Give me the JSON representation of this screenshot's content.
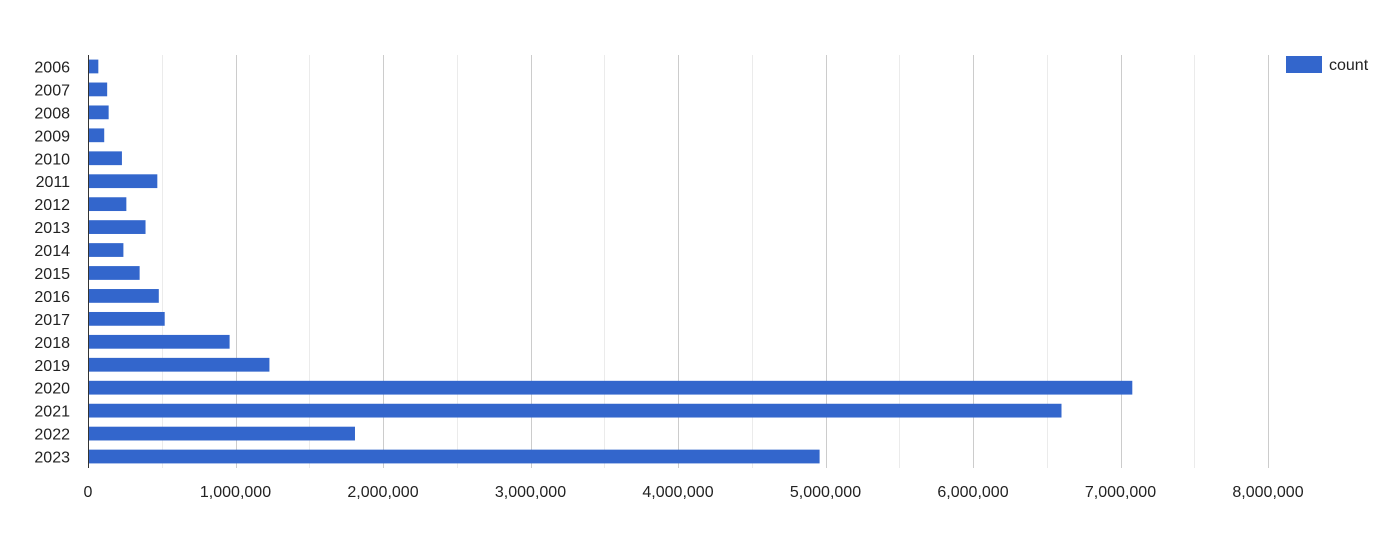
{
  "chart_data": {
    "type": "bar",
    "orientation": "horizontal",
    "categories": [
      "2006",
      "2007",
      "2008",
      "2009",
      "2010",
      "2011",
      "2012",
      "2013",
      "2014",
      "2015",
      "2016",
      "2017",
      "2018",
      "2019",
      "2020",
      "2021",
      "2022",
      "2023"
    ],
    "series": [
      {
        "name": "count",
        "color": "#3366cc",
        "values": [
          70000,
          130000,
          140000,
          110000,
          230000,
          470000,
          260000,
          390000,
          240000,
          350000,
          480000,
          520000,
          960000,
          1230000,
          7080000,
          6600000,
          1810000,
          4960000
        ]
      }
    ],
    "xlim": [
      0,
      8000000
    ],
    "x_ticks": [
      0,
      1000000,
      2000000,
      3000000,
      4000000,
      5000000,
      6000000,
      7000000,
      8000000
    ],
    "x_tick_labels": [
      "0",
      "1,000,000",
      "2,000,000",
      "3,000,000",
      "4,000,000",
      "5,000,000",
      "6,000,000",
      "7,000,000",
      "8,000,000"
    ],
    "minor_gridlines": true,
    "grid": true,
    "legend": {
      "position": "top-right",
      "entries": [
        "count"
      ]
    },
    "colors": {
      "bar": "#3366cc",
      "major_grid": "#cccccc",
      "minor_grid": "#ebebeb",
      "axis": "#333333",
      "text": "#222222"
    }
  }
}
